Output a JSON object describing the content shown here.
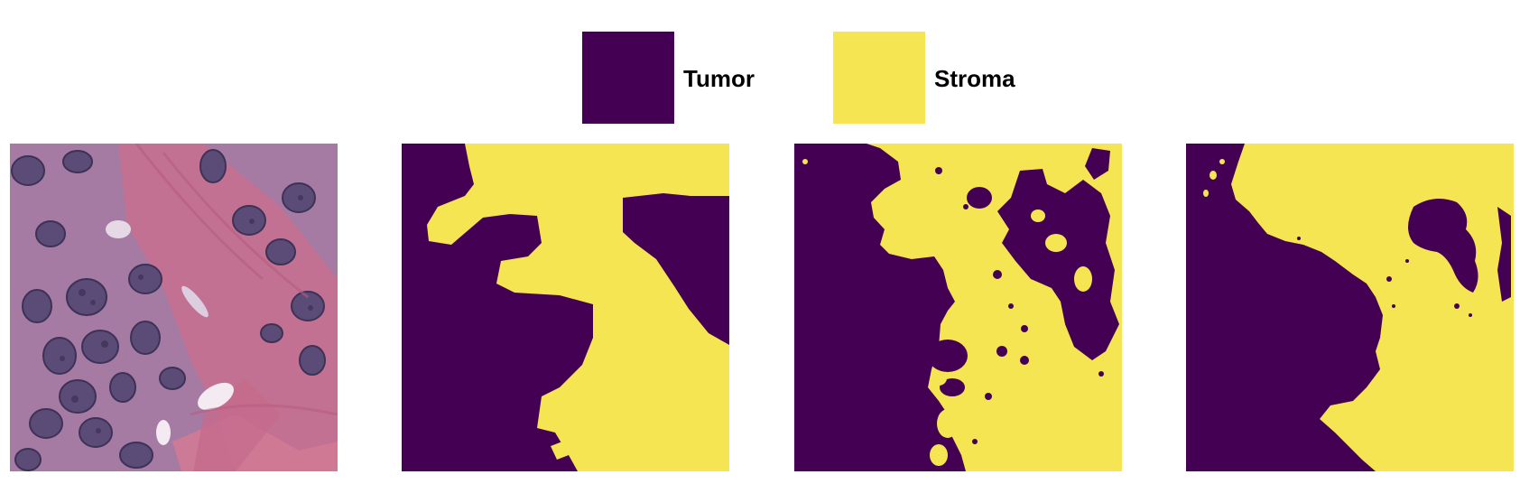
{
  "colors": {
    "tumor": "#440154",
    "stroma": "#f5e552",
    "tissue_base": "#a978a0",
    "tissue_pink": "#c96f8e",
    "nucleus": "#5e4f7a",
    "nucleus_dark": "#3f3458",
    "lumen": "#f3e9ef"
  },
  "legend": {
    "items": [
      {
        "label": "Tumor",
        "color": "#440154"
      },
      {
        "label": "Stroma",
        "color": "#f5e552"
      }
    ]
  },
  "panels": [
    {
      "kind": "histology-image"
    },
    {
      "kind": "segmentation-mask"
    },
    {
      "kind": "segmentation-mask"
    },
    {
      "kind": "segmentation-mask"
    }
  ]
}
